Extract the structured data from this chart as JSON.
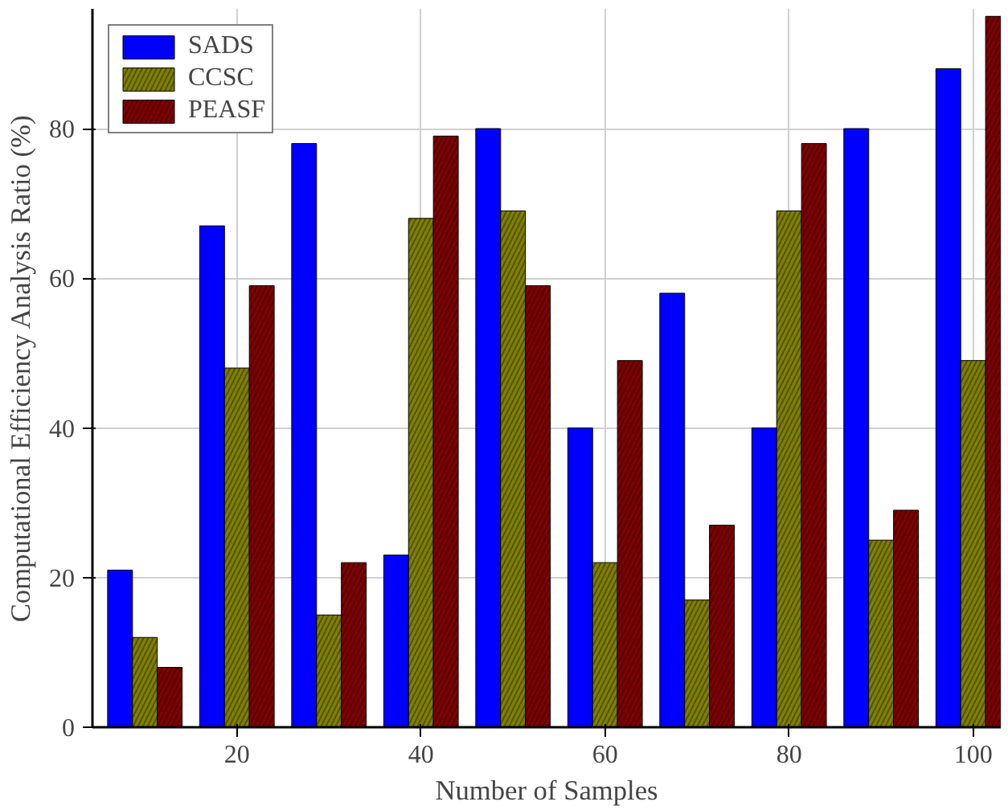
{
  "chart_data": {
    "type": "bar",
    "xlabel": "Number of Samples",
    "ylabel": "Computational Efficiency Analysis Ratio (%)",
    "x": [
      10,
      20,
      30,
      40,
      50,
      60,
      70,
      80,
      90,
      100
    ],
    "series": [
      {
        "name": "SADS",
        "color": "#0000ff",
        "values": [
          21,
          67,
          78,
          23,
          80,
          40,
          58,
          40,
          80,
          88
        ]
      },
      {
        "name": "CCSC",
        "color": "#808000",
        "values": [
          12,
          48,
          15,
          68,
          69,
          22,
          17,
          69,
          25,
          49
        ]
      },
      {
        "name": "PEASF",
        "color": "#800000",
        "values": [
          8,
          59,
          22,
          79,
          59,
          49,
          27,
          78,
          29,
          95
        ]
      }
    ],
    "xlim": [
      4.3,
      103
    ],
    "ylim": [
      0,
      96
    ],
    "xticks": [
      20,
      40,
      60,
      80,
      100
    ],
    "yticks": [
      0,
      20,
      40,
      60,
      80
    ],
    "grid": true,
    "legend": "top left"
  }
}
